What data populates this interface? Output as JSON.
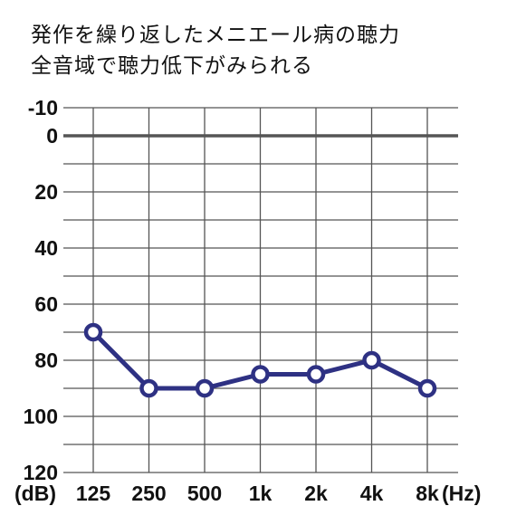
{
  "title_lines": [
    "発作を繰り返したメニエール病の聴力",
    "全音域で聴力低下がみられる"
  ],
  "chart_data": {
    "type": "line",
    "title": "発作を繰り返したメニエール病の聴力 全音域で聴力低下がみられる",
    "categories": [
      "125",
      "250",
      "500",
      "1k",
      "2k",
      "4k",
      "8k"
    ],
    "series": [
      {
        "values": [
          70,
          90,
          90,
          85,
          85,
          80,
          90
        ]
      }
    ],
    "y_tick_labels": [
      "-10",
      "0",
      "20",
      "40",
      "60",
      "80",
      "100",
      "120"
    ],
    "y_ticks": [
      -10,
      0,
      20,
      40,
      60,
      80,
      100,
      120
    ],
    "ylim": [
      -10,
      120
    ],
    "y_inverted": true,
    "ylabel_unit": "(dB)",
    "xlabel_unit": "(Hz)",
    "grid": true,
    "colors": {
      "series": "#2e3183",
      "grid": "#555555",
      "zero_line": "#555555"
    }
  }
}
